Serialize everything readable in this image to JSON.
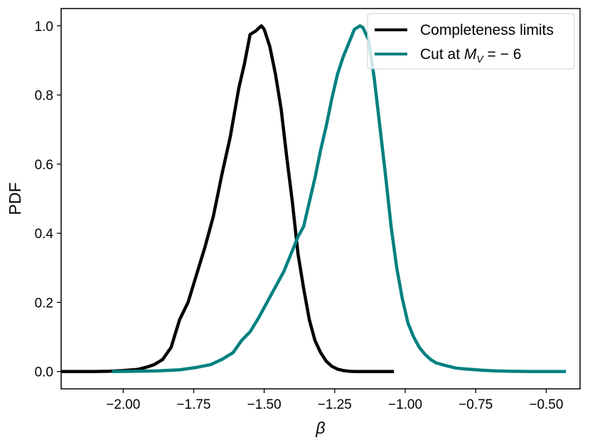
{
  "chart_data": {
    "type": "line",
    "title": "",
    "xlabel": "β",
    "ylabel": "PDF",
    "xlim": [
      -2.22,
      -0.38
    ],
    "ylim": [
      -0.05,
      1.05
    ],
    "xticks": [
      -2.0,
      -1.75,
      -1.5,
      -1.25,
      -1.0,
      -0.75,
      -0.5
    ],
    "xtick_labels": [
      "−2.00",
      "−1.75",
      "−1.50",
      "−1.25",
      "−1.00",
      "−0.75",
      "−0.50"
    ],
    "yticks": [
      0.0,
      0.2,
      0.4,
      0.6,
      0.8,
      1.0
    ],
    "ytick_labels": [
      "0.0",
      "0.2",
      "0.4",
      "0.6",
      "0.8",
      "1.0"
    ],
    "grid": false,
    "legend_position": "top-right",
    "series": [
      {
        "name": "Completeness limits",
        "color": "#000000",
        "x": [
          -2.22,
          -2.1,
          -2.05,
          -2.0,
          -1.95,
          -1.92,
          -1.89,
          -1.86,
          -1.83,
          -1.8,
          -1.77,
          -1.74,
          -1.71,
          -1.68,
          -1.65,
          -1.62,
          -1.59,
          -1.57,
          -1.55,
          -1.53,
          -1.51,
          -1.5,
          -1.48,
          -1.46,
          -1.44,
          -1.42,
          -1.4,
          -1.38,
          -1.36,
          -1.34,
          -1.32,
          -1.3,
          -1.28,
          -1.26,
          -1.24,
          -1.22,
          -1.2,
          -1.18,
          -1.15,
          -1.12,
          -1.08,
          -1.04
        ],
        "y": [
          0.0,
          0.0,
          0.001,
          0.003,
          0.006,
          0.012,
          0.02,
          0.035,
          0.07,
          0.15,
          0.2,
          0.28,
          0.36,
          0.45,
          0.57,
          0.68,
          0.82,
          0.89,
          0.975,
          0.985,
          1.0,
          0.99,
          0.94,
          0.86,
          0.76,
          0.62,
          0.49,
          0.34,
          0.24,
          0.15,
          0.09,
          0.055,
          0.03,
          0.015,
          0.007,
          0.003,
          0.001,
          0.0,
          0.0,
          0.0,
          0.0,
          0.0
        ]
      },
      {
        "name": "Cut at M_V = −6",
        "name_main": "Cut at ",
        "name_var": "M",
        "name_sub": "V",
        "name_rest": " = − 6",
        "color": "#008080",
        "x": [
          -2.04,
          -1.95,
          -1.88,
          -1.8,
          -1.74,
          -1.69,
          -1.65,
          -1.61,
          -1.58,
          -1.55,
          -1.52,
          -1.49,
          -1.46,
          -1.43,
          -1.4,
          -1.38,
          -1.36,
          -1.34,
          -1.32,
          -1.3,
          -1.28,
          -1.26,
          -1.24,
          -1.22,
          -1.2,
          -1.18,
          -1.16,
          -1.15,
          -1.13,
          -1.11,
          -1.09,
          -1.07,
          -1.05,
          -1.03,
          -1.01,
          -0.99,
          -0.97,
          -0.95,
          -0.93,
          -0.91,
          -0.89,
          -0.86,
          -0.82,
          -0.78,
          -0.73,
          -0.68,
          -0.63,
          -0.55,
          -0.48,
          -0.43
        ],
        "y": [
          0.0,
          0.001,
          0.002,
          0.005,
          0.012,
          0.02,
          0.035,
          0.055,
          0.09,
          0.115,
          0.155,
          0.2,
          0.245,
          0.29,
          0.35,
          0.39,
          0.42,
          0.49,
          0.56,
          0.64,
          0.71,
          0.79,
          0.86,
          0.91,
          0.95,
          0.99,
          1.0,
          0.995,
          0.96,
          0.85,
          0.71,
          0.57,
          0.42,
          0.3,
          0.21,
          0.14,
          0.1,
          0.07,
          0.05,
          0.035,
          0.025,
          0.018,
          0.01,
          0.007,
          0.004,
          0.002,
          0.001,
          0.0,
          0.0,
          0.0
        ]
      }
    ]
  }
}
